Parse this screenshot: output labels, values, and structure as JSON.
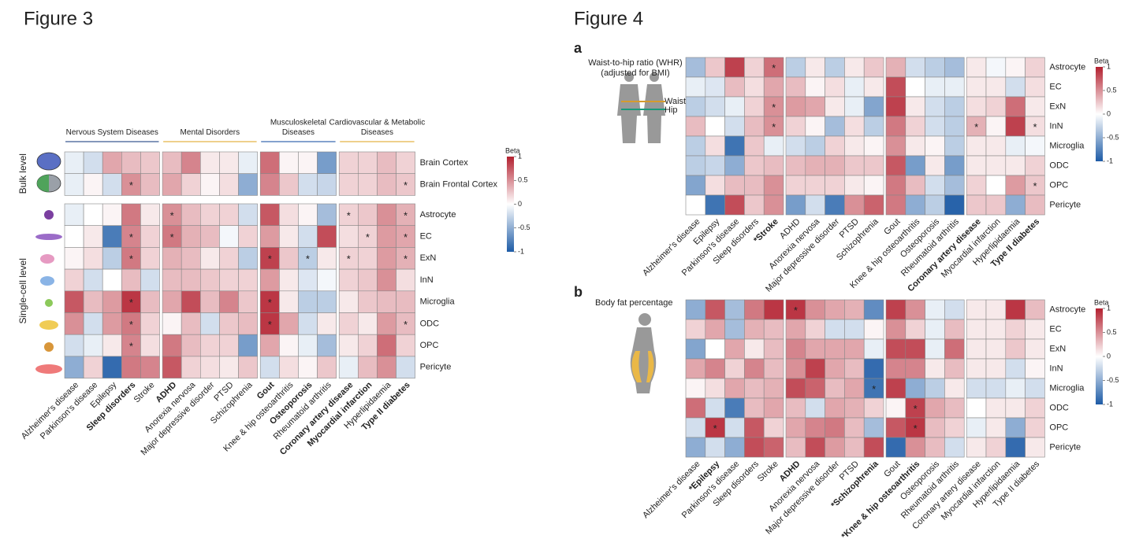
{
  "chart_data": [
    {
      "type": "heatmap",
      "figure": "Figure 3",
      "column_groups": [
        {
          "name": [
            "Nervous System Diseases"
          ],
          "color": "#3b5b92",
          "columns": [
            "Alzheimer's disease",
            "Parkinson's disease",
            "Epilepsy",
            "Sleep disorders",
            "Stroke"
          ],
          "label_colors": [
            null,
            null,
            null,
            "#c0272d",
            null
          ]
        },
        {
          "name": [
            "Mental Disorders"
          ],
          "color": "#e3b448",
          "columns": [
            "ADHD",
            "Anorexia nervosa",
            "Major depressive disorder",
            "PTSD",
            "Schizophrenia"
          ],
          "label_colors": [
            "#c0272d",
            null,
            null,
            null,
            null
          ]
        },
        {
          "name": [
            "Musculoskeletal",
            "Diseases"
          ],
          "color": "#3a6ab0",
          "columns": [
            "Gout",
            "Knee & hip osteoarthritis",
            "Osteoporosis",
            "Rheumatoid arthritis"
          ],
          "label_colors": [
            "#c0272d",
            null,
            "#2a6bb0",
            null
          ]
        },
        {
          "name": [
            "Cardiovascular & Metabolic",
            "Diseases"
          ],
          "color": "#e3b448",
          "columns": [
            "Coronary artery disease",
            "Myocardial infarction",
            "Hyperlipidaemia",
            "Type II diabetes"
          ],
          "label_colors": [
            "#c0272d",
            "#c0272d",
            null,
            "#c0272d"
          ]
        }
      ],
      "row_groups": [
        {
          "name": "Bulk level",
          "rows": [
            "Brain Cortex",
            "Brain Frontal Cortex"
          ],
          "values": [
            [
              -0.1,
              -0.2,
              0.4,
              0.3,
              0.25,
              0.3,
              0.55,
              0.1,
              0.1,
              -0.1,
              0.65,
              0.05,
              0.05,
              -0.6,
              0.2,
              0.2,
              0.3,
              0.2
            ],
            [
              -0.1,
              0.05,
              -0.2,
              0.5,
              0.3,
              0.4,
              0.2,
              0.05,
              0.15,
              -0.5,
              0.55,
              0.25,
              -0.2,
              -0.25,
              0.2,
              0.2,
              0.3,
              0.25
            ]
          ]
        },
        {
          "name": "Single-cell level",
          "rows": [
            "Astrocyte",
            "EC",
            "ExN",
            "InN",
            "Microglia",
            "ODC",
            "OPC",
            "Pericyte"
          ],
          "values": [
            [
              -0.1,
              0,
              0.05,
              0.6,
              0.1,
              0.5,
              0.3,
              0.2,
              0.2,
              -0.2,
              0.75,
              0.15,
              0.05,
              -0.4,
              0.2,
              0.25,
              0.5,
              0.35
            ],
            [
              0,
              0.1,
              -0.8,
              0.55,
              0.2,
              0.6,
              0.35,
              0.3,
              -0.05,
              0.2,
              0.45,
              0.1,
              -0.2,
              0.8,
              0.15,
              0.2,
              0.45,
              0.4
            ],
            [
              0.05,
              0.15,
              -0.3,
              0.6,
              0.2,
              0.35,
              0.3,
              0.1,
              0.2,
              -0.3,
              0.85,
              0.25,
              -0.3,
              0.1,
              0.2,
              0.2,
              0.45,
              0.35
            ],
            [
              0.2,
              -0.2,
              0,
              0.3,
              -0.2,
              0.3,
              0.3,
              0.25,
              0.2,
              0.2,
              0.45,
              0.1,
              -0.15,
              -0.05,
              0.2,
              0.25,
              0.5,
              0.15
            ],
            [
              0.75,
              0.3,
              0.45,
              0.9,
              0.3,
              0.4,
              0.8,
              0.3,
              0.55,
              0.25,
              0.9,
              0.1,
              -0.3,
              -0.3,
              0.1,
              0.25,
              0.3,
              0.3
            ],
            [
              0.5,
              -0.2,
              0.45,
              0.6,
              0.2,
              0.05,
              0.3,
              -0.2,
              0.25,
              0.3,
              0.9,
              0.4,
              -0.2,
              0.1,
              0.2,
              0.1,
              0.45,
              0.3
            ],
            [
              -0.2,
              -0.1,
              0.1,
              0.55,
              0.15,
              0.6,
              0.3,
              0.2,
              0.2,
              -0.6,
              0.4,
              0.05,
              -0.1,
              -0.4,
              0.1,
              0.2,
              0.65,
              0.2
            ],
            [
              -0.5,
              0.2,
              -0.9,
              0.6,
              0.55,
              0.75,
              0.2,
              0.15,
              0.1,
              0.25,
              -0.2,
              0.15,
              0.05,
              0.25,
              -0.1,
              0.3,
              0.5,
              -0.2
            ]
          ]
        }
      ],
      "significant": [
        [
          "Brain Frontal Cortex",
          "Sleep disorders"
        ],
        [
          "Brain Frontal Cortex",
          "Type II diabetes"
        ],
        [
          "Astrocyte",
          "ADHD"
        ],
        [
          "Astrocyte",
          "Coronary artery disease"
        ],
        [
          "Astrocyte",
          "Type II diabetes"
        ],
        [
          "EC",
          "Sleep disorders"
        ],
        [
          "EC",
          "ADHD"
        ],
        [
          "EC",
          "Myocardial infarction"
        ],
        [
          "EC",
          "Type II diabetes"
        ],
        [
          "ExN",
          "Sleep disorders"
        ],
        [
          "ExN",
          "Gout"
        ],
        [
          "ExN",
          "Osteoporosis"
        ],
        [
          "ExN",
          "Coronary artery disease"
        ],
        [
          "ExN",
          "Type II diabetes"
        ],
        [
          "Microglia",
          "Sleep disorders"
        ],
        [
          "Microglia",
          "Gout"
        ],
        [
          "ODC",
          "Sleep disorders"
        ],
        [
          "ODC",
          "Gout"
        ],
        [
          "ODC",
          "Type II diabetes"
        ],
        [
          "OPC",
          "Sleep disorders"
        ]
      ],
      "marker": "*",
      "legend_title": "Beta",
      "clim": [
        -1,
        1
      ],
      "cticks": [
        1,
        0.5,
        0,
        -0.5,
        -1
      ],
      "colorscale": [
        "#1d5ba6",
        "#ffffff",
        "#b3202f"
      ]
    },
    {
      "type": "heatmap",
      "figure": "Figure 4",
      "panel": "a",
      "annotations": [
        {
          "text": "Waist-to-hip ratio (WHR)",
          "color": null
        },
        {
          "text": "(adjusted for BMI)",
          "color": null
        },
        {
          "text": "Waist",
          "color": "#d59b2d"
        },
        {
          "text": "Hip",
          "color": "#1a9a7a"
        }
      ],
      "column_groups": [
        {
          "columns": [
            "Alzheimer's disease",
            "Epilepsy",
            "Parkinson's disease",
            "Sleep disorders",
            "*Stroke"
          ],
          "label_colors": [
            null,
            null,
            null,
            null,
            "#1a9a7a"
          ]
        },
        {
          "columns": [
            "ADHD",
            "Anorexia nervosa",
            "Major depressive disorder",
            "PTSD",
            "Schizophrenia"
          ],
          "label_colors": [
            null,
            null,
            null,
            null,
            null
          ]
        },
        {
          "columns": [
            "Gout",
            "Knee & hip osteoarthritis",
            "Osteoporosis",
            "Rheumatoid arthritis"
          ],
          "label_colors": [
            null,
            null,
            null,
            null
          ]
        },
        {
          "columns": [
            "Coronary artery disease",
            "Myocardial infarction",
            "Hyperlipidaemia",
            "Type II diabetes"
          ],
          "label_colors": [
            "#1a9a7a",
            null,
            null,
            "#1a9a7a"
          ]
        }
      ],
      "row_groups": [
        {
          "rows": [
            "Astrocyte",
            "EC",
            "ExN",
            "InN",
            "Microglia",
            "ODC",
            "OPC",
            "Pericyte"
          ],
          "values": [
            [
              -0.4,
              0.25,
              0.85,
              0.2,
              0.65,
              -0.3,
              0.1,
              -0.3,
              0.1,
              0.25,
              0.35,
              -0.2,
              -0.3,
              -0.4,
              0.1,
              -0.05,
              0.05,
              0.2
            ],
            [
              -0.1,
              -0.15,
              0.3,
              0.15,
              0.4,
              0.3,
              0.05,
              0.15,
              -0.1,
              0.1,
              0.8,
              0,
              -0.1,
              -0.1,
              0.1,
              0.1,
              -0.2,
              0.15
            ],
            [
              -0.3,
              -0.2,
              -0.1,
              0.2,
              0.5,
              0.45,
              0.4,
              0.1,
              -0.1,
              -0.55,
              0.85,
              0.1,
              -0.2,
              -0.3,
              0.15,
              0.2,
              0.65,
              0.1
            ],
            [
              0.3,
              0,
              -0.2,
              0.3,
              0.5,
              0.2,
              0.05,
              -0.4,
              0.15,
              -0.3,
              0.6,
              0.2,
              -0.2,
              -0.3,
              0.35,
              0.05,
              0.85,
              0.15
            ],
            [
              -0.3,
              0.15,
              -0.85,
              0.25,
              -0.1,
              -0.2,
              -0.3,
              0.2,
              0.1,
              0.05,
              0.5,
              0.1,
              0.05,
              -0.3,
              0.1,
              0.1,
              -0.1,
              -0.05
            ],
            [
              -0.3,
              -0.25,
              -0.5,
              0.25,
              0.3,
              0.3,
              0.35,
              0.35,
              0.25,
              0.25,
              0.75,
              -0.6,
              0.1,
              -0.6,
              0.1,
              0.1,
              0.1,
              0.2
            ],
            [
              -0.55,
              0.15,
              0.3,
              0.3,
              0.5,
              0.2,
              0.2,
              0.2,
              0.1,
              0.05,
              0.6,
              0.3,
              -0.2,
              -0.4,
              0.2,
              0,
              0.45,
              0.25
            ],
            [
              0,
              -0.85,
              0.8,
              0.25,
              0.5,
              -0.6,
              -0.2,
              -0.8,
              0.5,
              0.7,
              0.6,
              -0.5,
              -0.3,
              -0.95,
              0.25,
              0.25,
              -0.5,
              0.3
            ]
          ]
        }
      ],
      "significant": [
        [
          "Astrocyte",
          "*Stroke"
        ],
        [
          "ExN",
          "*Stroke"
        ],
        [
          "InN",
          "*Stroke"
        ],
        [
          "InN",
          "Coronary artery disease"
        ],
        [
          "InN",
          "Type II diabetes"
        ],
        [
          "OPC",
          "Type II diabetes"
        ]
      ],
      "marker": "*",
      "legend_title": "Beta",
      "clim": [
        -1,
        1
      ],
      "cticks": [
        1,
        0.5,
        0,
        -0.5,
        -1
      ],
      "colorscale": [
        "#1d5ba6",
        "#ffffff",
        "#b3202f"
      ]
    },
    {
      "type": "heatmap",
      "panel": "b",
      "annotations": [
        {
          "text": "Body fat percentage",
          "color": null
        }
      ],
      "column_groups": [
        {
          "columns": [
            "Alzheimer's disease",
            "*Epilepsy",
            "Parkinson's disease",
            "Sleep disorders",
            "Stroke"
          ],
          "label_colors": [
            null,
            "#d59b2d",
            null,
            null,
            null
          ]
        },
        {
          "columns": [
            "ADHD",
            "Anorexia nervosa",
            "Major depressive disorder",
            "PTSD",
            "*Schizophrenia"
          ],
          "label_colors": [
            "#d59b2d",
            null,
            null,
            null,
            "#d59b2d"
          ]
        },
        {
          "columns": [
            "Gout",
            "*Knee & hip osteoarthritis",
            "Osteoporosis",
            "Rheumatoid arthritis"
          ],
          "label_colors": [
            null,
            "#d59b2d",
            null,
            null
          ]
        },
        {
          "columns": [
            "Coronary artery disease",
            "Myocardial infarction",
            "Hyperlipidaemia",
            "Type II diabetes"
          ],
          "label_colors": [
            null,
            null,
            null,
            null
          ]
        }
      ],
      "row_groups": [
        {
          "rows": [
            "Astrocyte",
            "EC",
            "ExN",
            "InN",
            "Microglia",
            "ODC",
            "OPC",
            "Pericyte"
          ],
          "values": [
            [
              -0.5,
              0.75,
              -0.4,
              0.6,
              0.9,
              0.9,
              0.5,
              0.4,
              0.35,
              -0.7,
              0.85,
              0.5,
              -0.1,
              -0.2,
              0.1,
              0.1,
              0.9,
              0.3
            ],
            [
              0.2,
              0.4,
              -0.4,
              0.35,
              0.3,
              0.4,
              0.2,
              -0.2,
              -0.2,
              0.05,
              0.5,
              0.2,
              -0.1,
              0.3,
              0.1,
              0.1,
              0.2,
              0.1
            ],
            [
              -0.55,
              0,
              0.4,
              0.1,
              0.3,
              0.55,
              0.4,
              0.4,
              0.4,
              -0.1,
              0.8,
              0.8,
              -0.1,
              0.65,
              0.1,
              0.1,
              0.25,
              0.1
            ],
            [
              0.4,
              0.55,
              0.2,
              0.55,
              0.3,
              0.5,
              0.85,
              0.4,
              0.3,
              -0.9,
              0.55,
              0.55,
              0.1,
              0.3,
              0.1,
              0.1,
              -0.2,
              0.05
            ],
            [
              0.05,
              0.15,
              0.4,
              0.3,
              0.35,
              0.8,
              0.7,
              0.3,
              0.4,
              -0.85,
              0.85,
              -0.5,
              -0.3,
              0.1,
              -0.2,
              -0.2,
              -0.1,
              -0.2
            ],
            [
              0.65,
              -0.2,
              -0.8,
              0.3,
              0.4,
              0.3,
              -0.2,
              0.4,
              0.35,
              0.2,
              0.05,
              0.85,
              0.4,
              0.3,
              0,
              0.1,
              0.1,
              0.2
            ],
            [
              -0.2,
              0.9,
              -0.2,
              0.75,
              0.2,
              0.4,
              0.55,
              0.6,
              0.3,
              -0.4,
              0.75,
              0.9,
              0.3,
              0.2,
              -0.1,
              0.1,
              -0.5,
              0.2
            ],
            [
              -0.5,
              -0.2,
              -0.5,
              0.8,
              0.7,
              0.3,
              0.8,
              0.45,
              0.3,
              0.8,
              -0.9,
              0.5,
              0.3,
              -0.2,
              0.1,
              0.2,
              -0.9,
              0.1
            ]
          ]
        }
      ],
      "significant": [
        [
          "Astrocyte",
          "ADHD"
        ],
        [
          "Microglia",
          "*Schizophrenia"
        ],
        [
          "ODC",
          "*Knee & hip osteoarthritis"
        ],
        [
          "OPC",
          "*Knee & hip osteoarthritis"
        ],
        [
          "OPC",
          "*Epilepsy"
        ]
      ],
      "marker": "*",
      "legend_title": "Beta",
      "clim": [
        -1,
        1
      ],
      "cticks": [
        1,
        0.5,
        0,
        -0.5,
        -1
      ],
      "colorscale": [
        "#1d5ba6",
        "#ffffff",
        "#b3202f"
      ]
    }
  ]
}
